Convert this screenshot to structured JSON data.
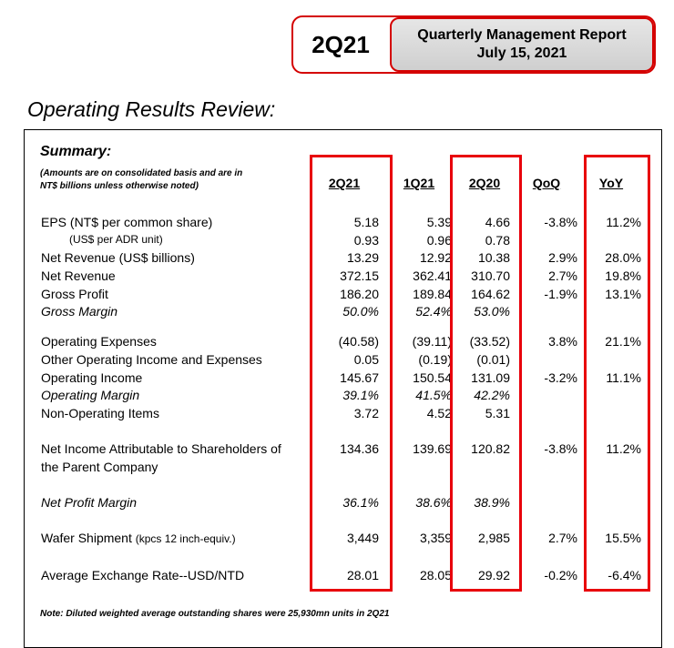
{
  "header": {
    "period": "2Q21",
    "report_title": "Quarterly Management Report",
    "report_date": "July 15, 2021"
  },
  "section_title": "Operating Results Review:",
  "summary": {
    "title": "Summary:",
    "note_line1": "(Amounts are on consolidated basis and are in",
    "note_line2": "NT$ billions unless otherwise noted)"
  },
  "columns": [
    "2Q21",
    "1Q21",
    "2Q20",
    "QoQ",
    "YoY"
  ],
  "rows": [
    {
      "label": "EPS (NT$ per common share)",
      "v": [
        "5.18",
        "5.39",
        "4.66",
        "-3.8%",
        "11.2%"
      ]
    },
    {
      "label": "(US$ per ADR unit)",
      "v": [
        "0.93",
        "0.96",
        "0.78",
        "",
        ""
      ]
    },
    {
      "label": "Net Revenue (US$ billions)",
      "v": [
        "13.29",
        "12.92",
        "10.38",
        "2.9%",
        "28.0%"
      ]
    },
    {
      "label": "Net Revenue",
      "v": [
        "372.15",
        "362.41",
        "310.70",
        "2.7%",
        "19.8%"
      ]
    },
    {
      "label": "Gross Profit",
      "v": [
        "186.20",
        "189.84",
        "164.62",
        "-1.9%",
        "13.1%"
      ]
    },
    {
      "label": "Gross Margin",
      "v": [
        "50.0%",
        "52.4%",
        "53.0%",
        "",
        ""
      ]
    },
    {
      "label": "Operating Expenses",
      "v": [
        "(40.58)",
        "(39.11)",
        "(33.52)",
        "3.8%",
        "21.1%"
      ]
    },
    {
      "label": "Other Operating Income and Expenses",
      "v": [
        "0.05",
        "(0.19)",
        "(0.01)",
        "",
        ""
      ]
    },
    {
      "label": "Operating Income",
      "v": [
        "145.67",
        "150.54",
        "131.09",
        "-3.2%",
        "11.1%"
      ]
    },
    {
      "label": "Operating Margin",
      "v": [
        "39.1%",
        "41.5%",
        "42.2%",
        "",
        ""
      ]
    },
    {
      "label": "Non-Operating Items",
      "v": [
        "3.72",
        "4.52",
        "5.31",
        "",
        ""
      ]
    },
    {
      "label": "Net Income Attributable to Shareholders of",
      "label2": "the Parent Company",
      "v": [
        "134.36",
        "139.69",
        "120.82",
        "-3.8%",
        "11.2%"
      ]
    },
    {
      "label": "Net Profit Margin",
      "v": [
        "36.1%",
        "38.6%",
        "38.9%",
        "",
        ""
      ]
    },
    {
      "label": "Wafer Shipment",
      "label_small": "(kpcs 12 inch-equiv.)",
      "v": [
        "3,449",
        "3,359",
        "2,985",
        "2.7%",
        "15.5%"
      ]
    },
    {
      "label": "Average Exchange Rate--USD/NTD",
      "v": [
        "28.01",
        "28.05",
        "29.92",
        "-0.2%",
        "-6.4%"
      ]
    }
  ],
  "footnote": "Note: Diluted weighted average outstanding shares were 25,930mn units in 2Q21",
  "colors": {
    "highlight": "#e8000b",
    "header_border": "#d40000"
  }
}
